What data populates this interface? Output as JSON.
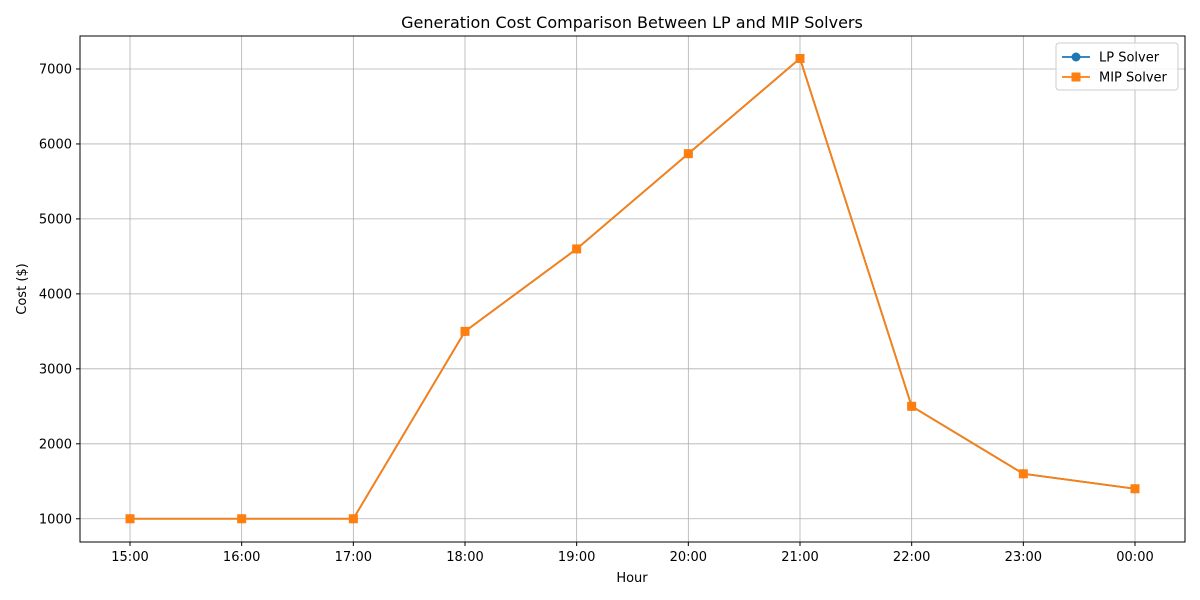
{
  "chart_data": {
    "type": "line",
    "title": "Generation Cost Comparison Between LP and MIP Solvers",
    "xlabel": "Hour",
    "ylabel": "Cost ($)",
    "categories": [
      "15:00",
      "16:00",
      "17:00",
      "18:00",
      "19:00",
      "20:00",
      "21:00",
      "22:00",
      "23:00",
      "00:00"
    ],
    "ylim": [
      690,
      7440
    ],
    "yticks": [
      1000,
      2000,
      3000,
      4000,
      5000,
      6000,
      7000
    ],
    "grid": true,
    "legend_position": "top-right",
    "series": [
      {
        "name": "LP Solver",
        "marker": "circle",
        "color": "#1f77b4",
        "values": [
          1000,
          1000,
          1000,
          3500,
          4600,
          5870,
          7140,
          2500,
          1600,
          1400
        ]
      },
      {
        "name": "MIP Solver",
        "marker": "square",
        "color": "#ff7f0e",
        "values": [
          1000,
          1000,
          1000,
          3500,
          4600,
          5870,
          7140,
          2500,
          1600,
          1400
        ]
      }
    ]
  }
}
